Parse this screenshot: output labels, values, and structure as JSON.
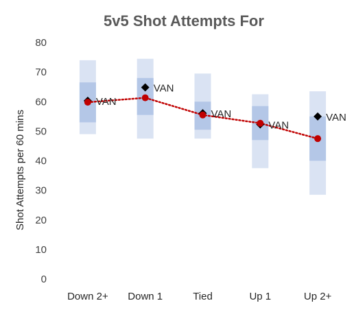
{
  "chart_data": {
    "type": "scatter",
    "title": "5v5 Shot Attempts For",
    "ylabel": "Shot Attempts per 60 mins",
    "xlabel": "",
    "categories": [
      "Down 2+",
      "Down 1",
      "Tied",
      "Up 1",
      "Up 2+"
    ],
    "ylim": [
      0,
      80
    ],
    "yticks": [
      0,
      10,
      20,
      30,
      40,
      50,
      60,
      70,
      80
    ],
    "grid": false,
    "outer_range": [
      [
        49,
        74
      ],
      [
        47.5,
        74.5
      ],
      [
        47.5,
        69.5
      ],
      [
        37.5,
        62.5
      ],
      [
        28.5,
        63.5
      ]
    ],
    "inner_range": [
      [
        53,
        66.5
      ],
      [
        55.5,
        68
      ],
      [
        50.5,
        60
      ],
      [
        47,
        58.5
      ],
      [
        40,
        55
      ]
    ],
    "series": [
      {
        "name": "VAN",
        "marker": "diamond",
        "color": "#000000",
        "values": [
          60.3,
          64.8,
          56.1,
          52.3,
          55.0
        ],
        "labels": [
          "VAN",
          "VAN",
          "VAN",
          "VAN",
          "VAN"
        ]
      },
      {
        "marker": "circle",
        "color": "#c00000",
        "line": "dotted",
        "values": [
          59.8,
          61.3,
          55.5,
          52.7,
          47.5
        ]
      }
    ],
    "colors": {
      "outer_band": "#dae3f3",
      "inner_band": "#b4c7e7",
      "title": "#595959"
    }
  }
}
